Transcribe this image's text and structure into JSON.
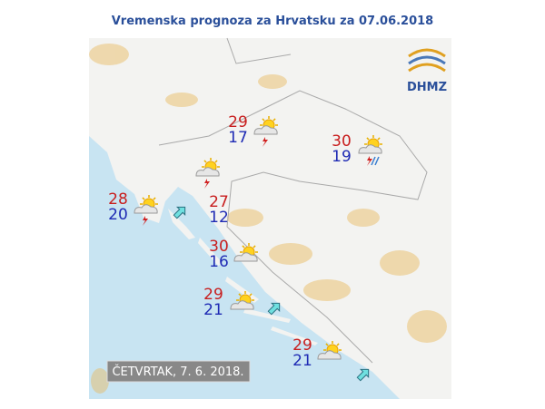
{
  "header": {
    "title": "Vremenska prognoza za Hrvatsku za 07.06.2018"
  },
  "logo": {
    "text": "DHMZ"
  },
  "date_label": "ČETVRTAK, 7. 6. 2018.",
  "forecasts": [
    {
      "max": 29,
      "min": 17
    },
    {
      "max": 30,
      "min": 19
    },
    {
      "max": 28,
      "min": 20
    },
    {
      "max": 27,
      "min": 12
    },
    {
      "max": 30,
      "min": 16
    },
    {
      "max": 29,
      "min": 21
    },
    {
      "max": 29,
      "min": 21
    }
  ]
}
